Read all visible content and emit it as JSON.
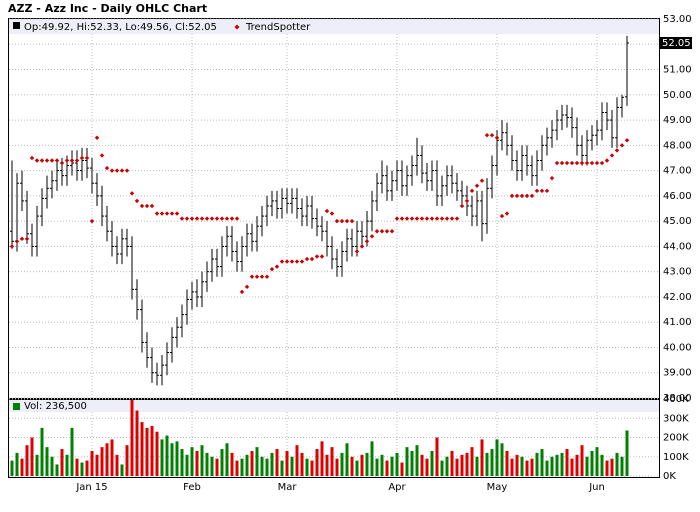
{
  "chart_data": [
    {
      "type": "ohlc",
      "title": "AZZ - Azz Inc - Daily OHLC Chart",
      "info": "Op:49.92, Hi:52.33, Lo:49.56, Cl:52.05",
      "color": "#000000",
      "open": [
        44.6,
        44.2,
        46.5,
        45.8,
        44.5,
        44.0,
        45.2,
        45.9,
        46.3,
        46.6,
        47.0,
        46.8,
        47.2,
        47.3,
        47.0,
        47.4,
        47.1,
        46.5,
        46.0,
        45.2,
        44.6,
        44.0,
        43.7,
        44.3,
        44.0,
        42.3,
        41.5,
        40.2,
        39.6,
        39.0,
        38.9,
        39.3,
        39.8,
        40.4,
        40.8,
        41.3,
        41.9,
        42.2,
        42.0,
        42.6,
        43.0,
        43.5,
        43.2,
        44.0,
        44.4,
        43.8,
        43.4,
        44.0,
        44.5,
        44.2,
        44.8,
        45.2,
        45.6,
        45.8,
        45.5,
        45.9,
        45.7,
        45.9,
        45.5,
        45.2,
        45.6,
        45.1,
        44.8,
        44.6,
        44.0,
        43.5,
        43.2,
        43.8,
        44.3,
        44.0,
        44.6,
        44.4,
        45.0,
        45.8,
        46.5,
        46.8,
        46.2,
        46.6,
        47.0,
        46.4,
        46.8,
        47.2,
        47.6,
        46.9,
        46.6,
        47.0,
        46.0,
        46.4,
        46.8,
        46.5,
        46.2,
        46.0,
        45.6,
        45.2,
        45.8,
        44.9,
        46.3,
        47.2,
        48.2,
        48.5,
        48.0,
        47.4,
        47.0,
        47.6,
        47.2,
        46.8,
        47.4,
        48.0,
        48.3,
        48.6,
        49.0,
        49.2,
        49.1,
        48.7,
        48.0,
        47.6,
        48.2,
        48.4,
        48.6,
        49.3,
        49.0,
        48.3,
        49.5,
        49.92
      ],
      "high": [
        47.4,
        46.9,
        47.0,
        46.2,
        44.9,
        45.6,
        46.3,
        46.8,
        47.0,
        47.4,
        47.5,
        47.6,
        47.8,
        47.8,
        47.9,
        47.9,
        47.5,
        46.9,
        46.4,
        45.6,
        45.0,
        44.4,
        44.7,
        44.7,
        44.4,
        42.7,
        41.9,
        40.6,
        40.0,
        39.4,
        39.7,
        40.2,
        40.8,
        41.2,
        41.7,
        42.3,
        42.6,
        42.7,
        43.0,
        43.4,
        43.9,
        43.9,
        44.4,
        44.8,
        44.8,
        44.2,
        44.4,
        44.9,
        44.9,
        45.2,
        45.6,
        46.0,
        46.2,
        46.2,
        46.3,
        46.3,
        46.3,
        46.3,
        45.9,
        46.0,
        46.0,
        45.5,
        45.2,
        45.0,
        44.4,
        43.9,
        44.2,
        44.7,
        44.7,
        45.0,
        45.0,
        45.4,
        46.2,
        46.9,
        47.4,
        47.2,
        47.0,
        47.4,
        47.4,
        47.2,
        47.6,
        48.3,
        48.0,
        47.3,
        47.4,
        47.4,
        46.8,
        47.2,
        47.2,
        46.9,
        46.6,
        46.4,
        46.0,
        46.2,
        46.2,
        46.7,
        47.6,
        48.6,
        49.0,
        48.9,
        48.4,
        47.8,
        48.0,
        48.0,
        47.6,
        47.8,
        48.4,
        48.7,
        49.0,
        49.4,
        49.6,
        49.6,
        49.5,
        49.1,
        48.4,
        48.6,
        48.8,
        49.0,
        49.7,
        49.7,
        49.4,
        49.9,
        50.0,
        52.33
      ],
      "low": [
        43.9,
        43.8,
        45.4,
        44.1,
        43.6,
        43.6,
        44.8,
        45.5,
        45.9,
        46.2,
        46.4,
        46.4,
        46.8,
        46.6,
        46.6,
        46.7,
        46.1,
        45.6,
        44.8,
        44.2,
        43.6,
        43.3,
        43.3,
        43.6,
        41.9,
        41.1,
        39.8,
        39.2,
        38.6,
        38.5,
        38.5,
        38.9,
        39.4,
        40.0,
        40.4,
        40.9,
        41.5,
        41.6,
        41.6,
        42.2,
        42.6,
        42.8,
        42.8,
        43.6,
        43.4,
        43.0,
        43.0,
        43.6,
        43.8,
        43.8,
        44.4,
        44.8,
        45.2,
        45.1,
        45.1,
        45.3,
        45.3,
        45.1,
        44.8,
        44.8,
        44.7,
        44.4,
        44.2,
        43.6,
        43.1,
        42.8,
        42.8,
        43.4,
        43.6,
        43.6,
        44.0,
        44.0,
        44.6,
        45.4,
        46.1,
        45.8,
        45.8,
        46.2,
        46.0,
        46.0,
        46.4,
        46.8,
        46.5,
        46.2,
        46.2,
        45.6,
        45.6,
        46.0,
        46.1,
        45.8,
        45.6,
        45.2,
        44.8,
        44.8,
        44.2,
        44.5,
        45.9,
        46.8,
        47.8,
        47.6,
        47.0,
        46.6,
        46.6,
        46.8,
        46.4,
        46.4,
        47.0,
        47.6,
        47.9,
        48.2,
        48.6,
        48.7,
        48.3,
        47.6,
        47.2,
        47.2,
        47.8,
        48.0,
        48.2,
        48.6,
        47.9,
        47.9,
        49.1,
        49.56
      ],
      "close": [
        44.2,
        46.5,
        45.8,
        44.5,
        44.0,
        45.2,
        45.9,
        46.3,
        46.6,
        47.0,
        46.8,
        47.2,
        47.3,
        47.0,
        47.4,
        47.1,
        46.5,
        46.0,
        45.2,
        44.6,
        44.0,
        43.7,
        44.3,
        44.0,
        42.3,
        41.5,
        40.2,
        39.6,
        39.0,
        38.9,
        39.3,
        39.8,
        40.4,
        40.8,
        41.3,
        41.9,
        42.2,
        42.0,
        42.6,
        43.0,
        43.5,
        43.2,
        44.0,
        44.4,
        43.8,
        43.4,
        44.0,
        44.5,
        44.2,
        44.8,
        45.2,
        45.6,
        45.8,
        45.5,
        45.9,
        45.7,
        45.9,
        45.5,
        45.2,
        45.6,
        45.1,
        44.8,
        44.6,
        44.0,
        43.5,
        43.2,
        43.8,
        44.3,
        44.0,
        44.6,
        44.4,
        45.0,
        45.8,
        46.5,
        46.8,
        46.2,
        46.6,
        47.0,
        46.4,
        46.8,
        47.2,
        47.6,
        46.9,
        46.6,
        47.0,
        46.0,
        46.4,
        46.8,
        46.5,
        46.2,
        46.0,
        45.6,
        45.2,
        45.8,
        44.9,
        46.3,
        47.2,
        48.2,
        48.5,
        48.0,
        47.4,
        47.0,
        47.6,
        47.2,
        46.8,
        47.4,
        48.0,
        48.3,
        48.6,
        49.0,
        49.2,
        49.1,
        48.7,
        48.0,
        47.6,
        48.2,
        48.4,
        48.6,
        49.3,
        49.0,
        48.3,
        49.5,
        49.9,
        52.05
      ],
      "series": [
        {
          "name": "TrendSpotter",
          "color": "#cc0000",
          "values": [
            44.0,
            44.2,
            44.3,
            44.3,
            47.5,
            47.4,
            47.4,
            47.4,
            47.4,
            47.4,
            47.3,
            47.4,
            47.4,
            47.4,
            47.5,
            47.5,
            45.0,
            48.3,
            47.6,
            47.1,
            47.0,
            47.0,
            47.0,
            47.0,
            46.1,
            45.8,
            45.6,
            45.6,
            45.6,
            45.3,
            45.3,
            45.3,
            45.3,
            45.3,
            45.1,
            45.1,
            45.1,
            45.1,
            45.1,
            45.1,
            45.1,
            45.1,
            45.1,
            45.1,
            45.1,
            45.1,
            42.2,
            42.4,
            42.8,
            42.8,
            42.8,
            42.8,
            43.1,
            43.2,
            43.4,
            43.4,
            43.4,
            43.4,
            43.4,
            43.5,
            43.5,
            43.6,
            43.6,
            45.4,
            45.3,
            45.0,
            45.0,
            45.0,
            45.0,
            43.8,
            44.0,
            44.2,
            44.4,
            44.6,
            44.6,
            44.6,
            44.6,
            45.1,
            45.1,
            45.1,
            45.1,
            45.1,
            45.1,
            45.1,
            45.1,
            45.1,
            45.1,
            45.1,
            45.1,
            45.1,
            45.6,
            45.8,
            46.2,
            46.4,
            46.6,
            48.4,
            48.4,
            48.3,
            45.2,
            45.3,
            46.0,
            46.0,
            46.0,
            46.0,
            46.0,
            46.2,
            46.2,
            46.2,
            46.7,
            47.3,
            47.3,
            47.3,
            47.3,
            47.3,
            47.3,
            47.3,
            47.3,
            47.3,
            47.3,
            47.4,
            47.6,
            47.8,
            48.0,
            48.2
          ]
        }
      ],
      "ylim": [
        38,
        53
      ],
      "yticks": [
        {
          "value": 38,
          "label": "38.00"
        },
        {
          "value": 39,
          "label": "39.00"
        },
        {
          "value": 40,
          "label": "40.00"
        },
        {
          "value": 41,
          "label": "41.00"
        },
        {
          "value": 42,
          "label": "42.00"
        },
        {
          "value": 43,
          "label": "43.00"
        },
        {
          "value": 44,
          "label": "44.00"
        },
        {
          "value": 45,
          "label": "45.00"
        },
        {
          "value": 46,
          "label": "46.00"
        },
        {
          "value": 47,
          "label": "47.00"
        },
        {
          "value": 48,
          "label": "48.00"
        },
        {
          "value": 49,
          "label": "49.00"
        },
        {
          "value": 50,
          "label": "50.00"
        },
        {
          "value": 51,
          "label": "51.00"
        },
        {
          "value": 52,
          "label": "52.00"
        },
        {
          "value": 53,
          "label": "53.00"
        }
      ],
      "grid": true
    },
    {
      "type": "bar",
      "legend_text": "Vol: 236,500",
      "categories": [
        null,
        null,
        null,
        null,
        null,
        null,
        null,
        null,
        null,
        null,
        null,
        null,
        null,
        null,
        null,
        null,
        "Jan 15",
        null,
        null,
        null,
        null,
        null,
        null,
        null,
        null,
        null,
        null,
        null,
        null,
        null,
        null,
        null,
        null,
        null,
        null,
        null,
        "Feb",
        null,
        null,
        null,
        null,
        null,
        null,
        null,
        null,
        null,
        null,
        null,
        null,
        null,
        null,
        null,
        null,
        null,
        null,
        "Mar",
        null,
        null,
        null,
        null,
        null,
        null,
        null,
        null,
        null,
        null,
        null,
        null,
        null,
        null,
        null,
        null,
        null,
        null,
        null,
        null,
        null,
        "Apr",
        null,
        null,
        null,
        null,
        null,
        null,
        null,
        null,
        null,
        null,
        null,
        null,
        null,
        null,
        null,
        null,
        null,
        null,
        null,
        "May",
        null,
        null,
        null,
        null,
        null,
        null,
        null,
        null,
        null,
        null,
        null,
        null,
        null,
        null,
        null,
        null,
        null,
        null,
        null,
        "Jun",
        null,
        null,
        null,
        null,
        null,
        null
      ],
      "values": [
        80000,
        120000,
        90000,
        160000,
        200000,
        110000,
        250000,
        150000,
        100000,
        60000,
        140000,
        110000,
        250000,
        90000,
        70000,
        80000,
        130000,
        110000,
        150000,
        170000,
        190000,
        110000,
        60000,
        160000,
        395000,
        340000,
        280000,
        250000,
        260000,
        230000,
        190000,
        210000,
        170000,
        180000,
        140000,
        110000,
        150000,
        130000,
        160000,
        120000,
        100000,
        90000,
        140000,
        170000,
        120000,
        80000,
        90000,
        110000,
        130000,
        150000,
        100000,
        90000,
        120000,
        140000,
        80000,
        130000,
        100000,
        160000,
        120000,
        90000,
        80000,
        140000,
        180000,
        110000,
        150000,
        90000,
        120000,
        170000,
        100000,
        80000,
        110000,
        120000,
        180000,
        90000,
        110000,
        80000,
        100000,
        120000,
        70000,
        150000,
        130000,
        160000,
        110000,
        90000,
        130000,
        200000,
        80000,
        100000,
        130000,
        90000,
        110000,
        120000,
        150000,
        100000,
        190000,
        120000,
        140000,
        190000,
        170000,
        130000,
        90000,
        110000,
        100000,
        80000,
        90000,
        120000,
        140000,
        80000,
        100000,
        110000,
        120000,
        140000,
        90000,
        110000,
        160000,
        100000,
        130000,
        150000,
        110000,
        80000,
        90000,
        120000,
        100000,
        236500
      ],
      "up_color": "#008000",
      "down_color": "#dd0000",
      "ylim": [
        0,
        400000
      ],
      "yticks": [
        {
          "value": 0,
          "label": "0K"
        },
        {
          "value": 100000,
          "label": "100K"
        },
        {
          "value": 200000,
          "label": "200K"
        },
        {
          "value": 300000,
          "label": "300K"
        },
        {
          "value": 400000,
          "label": "400K"
        }
      ],
      "grid": true
    }
  ]
}
